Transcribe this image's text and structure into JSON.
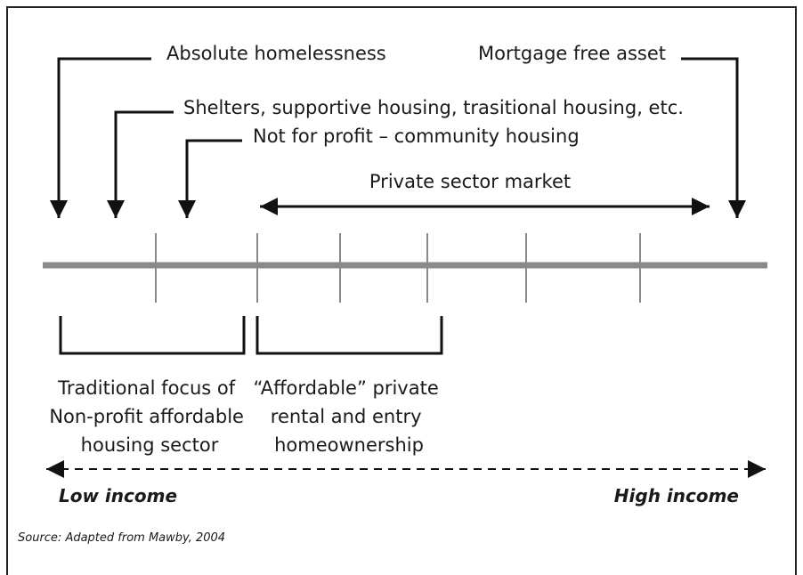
{
  "annotations": [
    "Absolute homelessness",
    "Mortgage free asset",
    "Shelters, supportive housing, trasitional housing, etc.",
    "Not for profit – community housing",
    "Private sector market"
  ],
  "brackets": [
    {
      "lines": [
        "Traditional focus of",
        "Non-profit affordable",
        "housing sector"
      ]
    },
    {
      "lines": [
        "“Affordable” private",
        "rental and entry",
        "homeownership"
      ]
    }
  ],
  "income_axis": {
    "left": "Low income",
    "right": "High income"
  },
  "source": "Source: Adapted from Mawby, 2004"
}
